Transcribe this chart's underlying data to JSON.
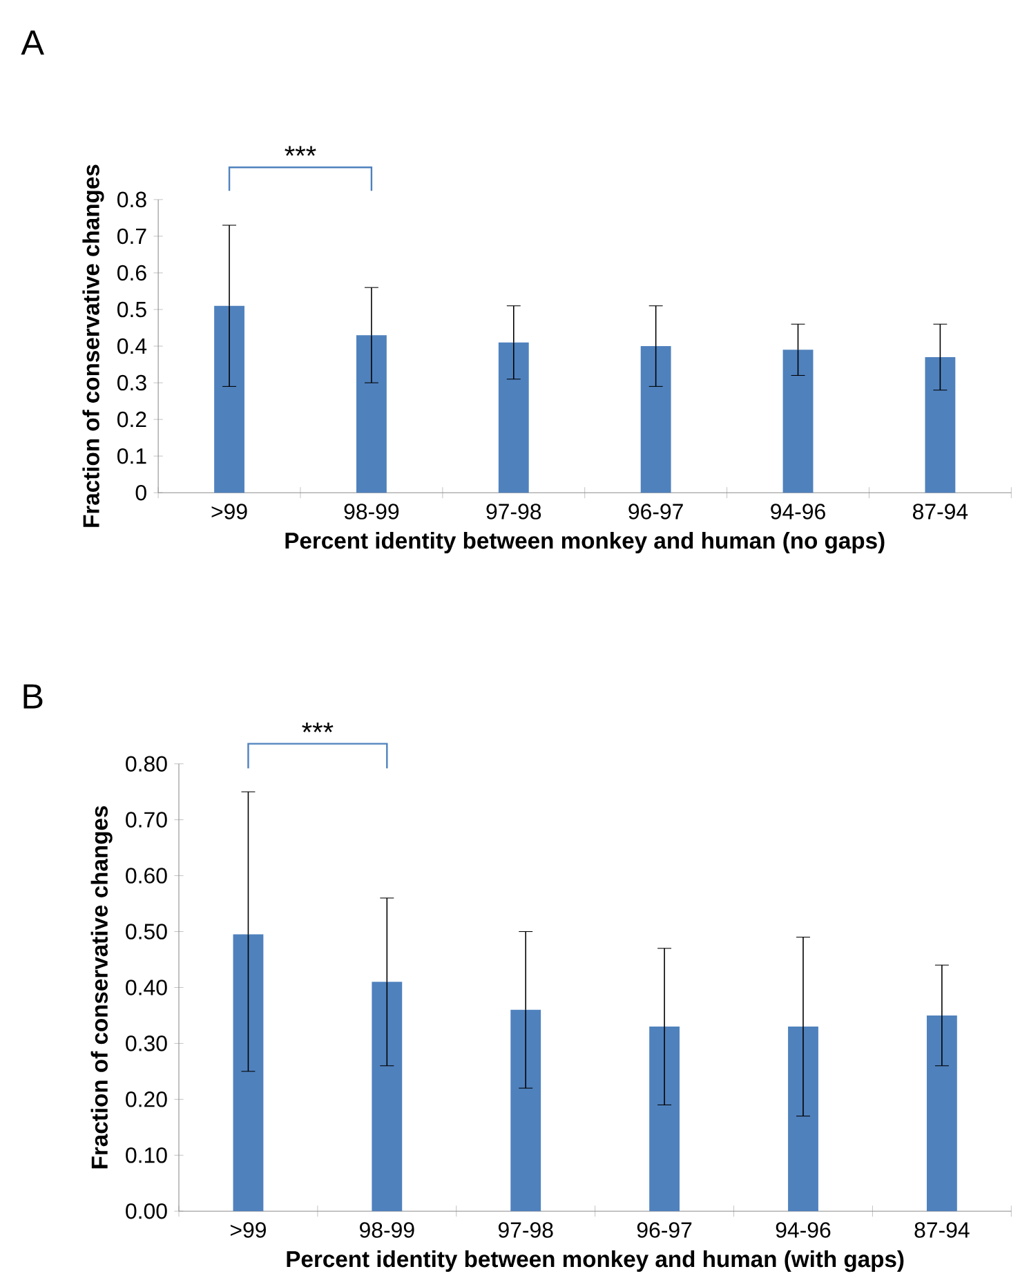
{
  "chart_data": [
    {
      "type": "bar",
      "xlabel": "Percent identity between monkey and human (no gaps)",
      "ylabel": "Fraction of conservative changes",
      "annotations": [
        "A",
        "***"
      ],
      "categories": [
        ">99",
        "98-99",
        "97-98",
        "96-97",
        "94-96",
        "87-94"
      ],
      "values": [
        0.51,
        0.43,
        0.41,
        0.4,
        0.39,
        0.37
      ],
      "color": "#4f81bd",
      "errors": [
        [
          0.29,
          0.73
        ],
        [
          0.3,
          0.56
        ],
        [
          0.31,
          0.51
        ],
        [
          0.29,
          0.51
        ],
        [
          0.32,
          0.46
        ],
        [
          0.28,
          0.46
        ]
      ],
      "ylim": [
        0,
        0.8
      ],
      "yticks": [
        0,
        0.1,
        0.2,
        0.3,
        0.4,
        0.5,
        0.6,
        0.7,
        0.8
      ],
      "grid": false
    },
    {
      "type": "bar",
      "xlabel": "Percent identity between monkey and human (with gaps)",
      "ylabel": "Fraction of conservative changes",
      "annotations": [
        "B",
        "***"
      ],
      "categories": [
        ">99",
        "98-99",
        "97-98",
        "96-97",
        "94-96",
        "87-94"
      ],
      "values": [
        0.495,
        0.41,
        0.36,
        0.33,
        0.33,
        0.35
      ],
      "color": "#4f81bd",
      "errors": [
        [
          0.25,
          0.75
        ],
        [
          0.26,
          0.56
        ],
        [
          0.22,
          0.5
        ],
        [
          0.19,
          0.47
        ],
        [
          0.17,
          0.49
        ],
        [
          0.26,
          0.44
        ]
      ],
      "ylim": [
        0,
        0.8
      ],
      "yticks": [
        {
          "value": 0,
          "label": "0.00"
        },
        {
          "value": 0.1,
          "label": "0.10"
        },
        {
          "value": 0.2,
          "label": "0.20"
        },
        {
          "value": 0.3,
          "label": "0.30"
        },
        {
          "value": 0.4,
          "label": "0.40"
        },
        {
          "value": 0.5,
          "label": "0.50"
        },
        {
          "value": 0.6,
          "label": "0.60"
        },
        {
          "value": 0.7,
          "label": "0.70"
        },
        {
          "value": 0.8,
          "label": "0.80"
        }
      ],
      "grid": false
    }
  ]
}
